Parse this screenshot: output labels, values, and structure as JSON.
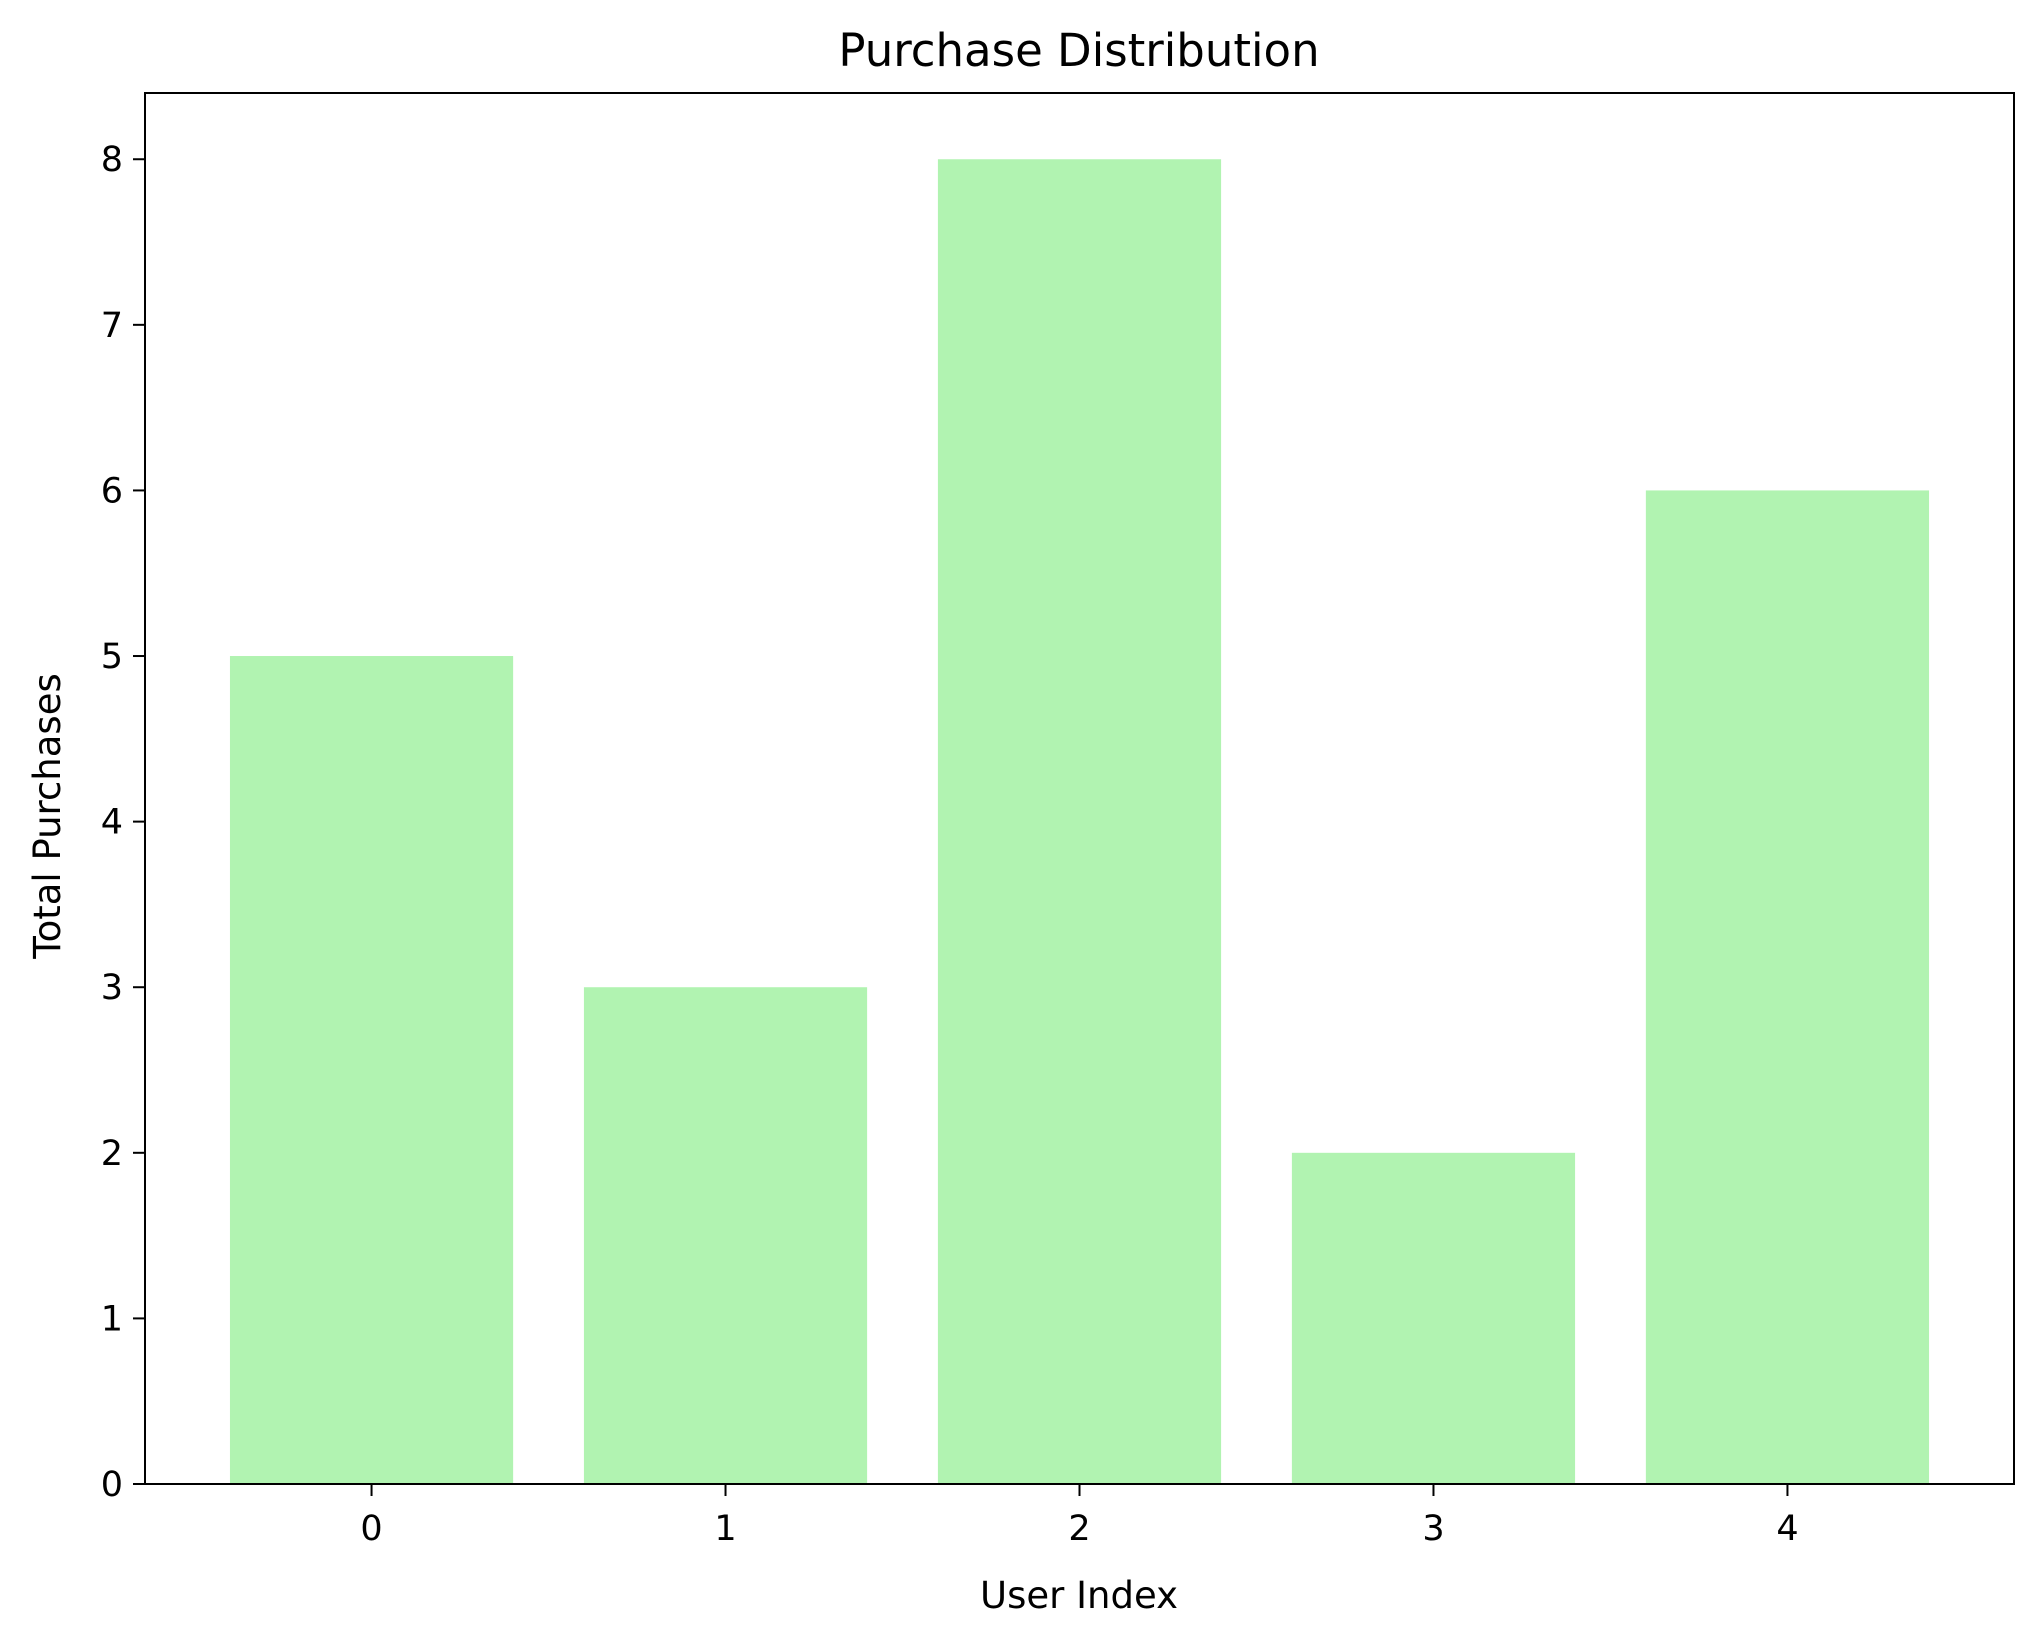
{
  "chart_data": {
    "type": "bar",
    "title": "Purchase Distribution",
    "xlabel": "User Index",
    "ylabel": "Total Purchases",
    "categories": [
      "0",
      "1",
      "2",
      "3",
      "4"
    ],
    "values": [
      5,
      3,
      8,
      2,
      6
    ],
    "xlim": [
      -0.64,
      4.64
    ],
    "ylim": [
      0,
      8.4
    ],
    "yticks": [
      0,
      1,
      2,
      3,
      4,
      5,
      6,
      7,
      8
    ],
    "bar_color": "#b1f3b1",
    "grid": false,
    "legend": "none"
  }
}
